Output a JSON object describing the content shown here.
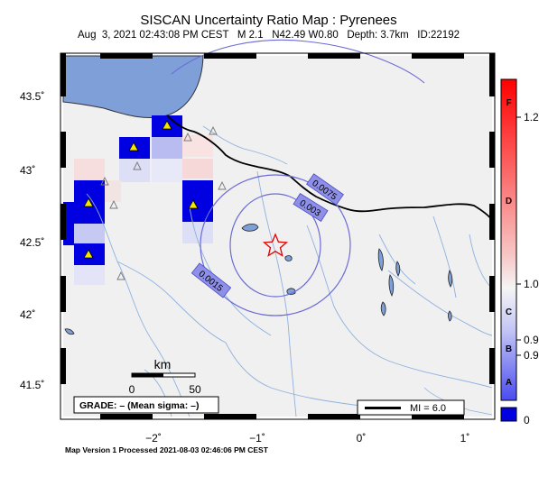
{
  "header": {
    "title": "SISCAN Uncertainty Ratio Map : Pyrenees",
    "subtitle": "Aug  3, 2021 02:43:08 PM CEST   M 2.1   N42.49 W0.80   Depth: 3.7km   ID:22192"
  },
  "footer": {
    "processed": "Map Version 1 Processed 2021-08-03 02:46:06 PM CEST"
  },
  "axes": {
    "lat_labels": [
      "43.5˚",
      "43˚",
      "42.5˚",
      "42˚",
      "41.5˚"
    ],
    "lon_labels": [
      "−2˚",
      "−1˚",
      "0˚",
      "1˚"
    ]
  },
  "contours": [
    "0.0075",
    "0.003",
    "0.0015"
  ],
  "scale_bar": {
    "unit": "km",
    "ticks": [
      "0",
      "50"
    ]
  },
  "grade_box": "GRADE: – (Mean sigma: –)",
  "mi_legend": "MI = 6.0",
  "colorbar": {
    "grades": [
      "F",
      "D",
      "C",
      "B",
      "A"
    ],
    "ticks": [
      "1.2",
      "1.0",
      "0.9",
      "0.9",
      "0"
    ]
  },
  "colors": {
    "sea": "#7f9fd8",
    "land": "#f0f0f0",
    "cell": "#0000e0",
    "star": "#e00000"
  }
}
